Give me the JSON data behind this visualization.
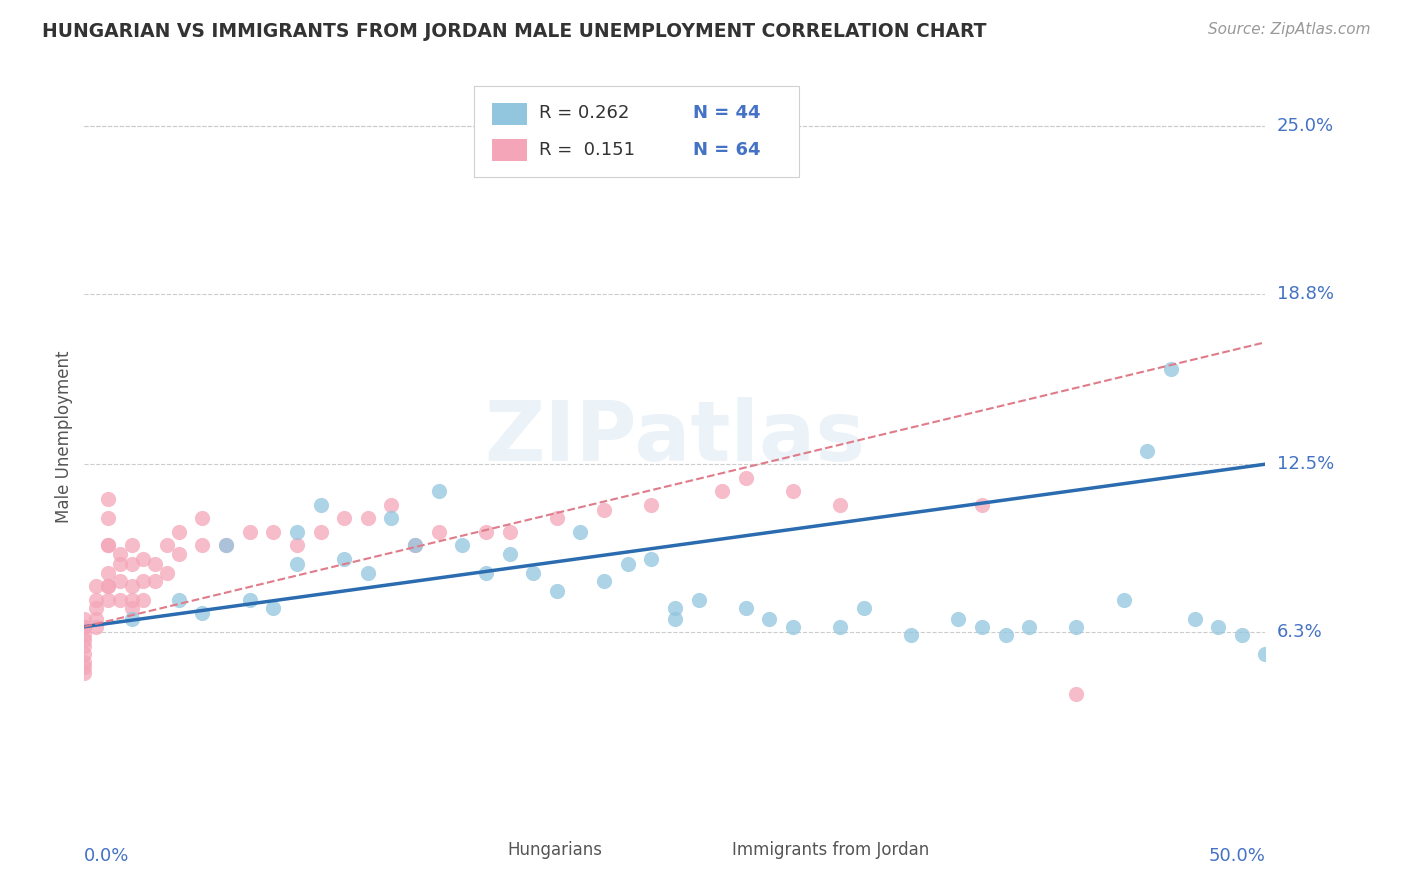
{
  "title": "HUNGARIAN VS IMMIGRANTS FROM JORDAN MALE UNEMPLOYMENT CORRELATION CHART",
  "source": "Source: ZipAtlas.com",
  "ylabel": "Male Unemployment",
  "ytick_labels": [
    "25.0%",
    "18.8%",
    "12.5%",
    "6.3%"
  ],
  "ytick_values": [
    0.25,
    0.188,
    0.125,
    0.063
  ],
  "xlim": [
    0.0,
    0.5
  ],
  "ylim": [
    0.0,
    0.27
  ],
  "grid_color": "#cccccc",
  "watermark_text": "ZIPatlas",
  "legend_r1": "R = 0.262",
  "legend_n1": "N = 44",
  "legend_r2": "R =  0.151",
  "legend_n2": "N = 64",
  "series1_label": "Hungarians",
  "series2_label": "Immigrants from Jordan",
  "series1_color": "#92c5de",
  "series2_color": "#f4a6b8",
  "line1_color": "#2b6cb0",
  "line2_color": "#e07b8a",
  "line1_x0": 0.0,
  "line1_x1": 0.5,
  "line1_y0": 0.065,
  "line1_y1": 0.125,
  "line2_x0": 0.0,
  "line2_x1": 0.5,
  "line2_y0": 0.065,
  "line2_y1": 0.17,
  "hungarian_x": [
    0.02,
    0.04,
    0.05,
    0.06,
    0.07,
    0.08,
    0.09,
    0.09,
    0.1,
    0.11,
    0.12,
    0.13,
    0.14,
    0.15,
    0.16,
    0.17,
    0.18,
    0.19,
    0.2,
    0.21,
    0.22,
    0.23,
    0.24,
    0.25,
    0.25,
    0.26,
    0.28,
    0.29,
    0.3,
    0.32,
    0.33,
    0.35,
    0.37,
    0.38,
    0.39,
    0.4,
    0.42,
    0.44,
    0.45,
    0.46,
    0.47,
    0.48,
    0.49,
    0.5
  ],
  "hungarian_y": [
    0.068,
    0.075,
    0.07,
    0.095,
    0.075,
    0.072,
    0.088,
    0.1,
    0.11,
    0.09,
    0.085,
    0.105,
    0.095,
    0.115,
    0.095,
    0.085,
    0.092,
    0.085,
    0.078,
    0.1,
    0.082,
    0.088,
    0.09,
    0.068,
    0.072,
    0.075,
    0.072,
    0.068,
    0.065,
    0.065,
    0.072,
    0.062,
    0.068,
    0.065,
    0.062,
    0.065,
    0.065,
    0.075,
    0.13,
    0.16,
    0.068,
    0.065,
    0.062,
    0.055
  ],
  "jordan_x": [
    0.0,
    0.0,
    0.0,
    0.0,
    0.0,
    0.0,
    0.0,
    0.0,
    0.0,
    0.0,
    0.005,
    0.005,
    0.005,
    0.005,
    0.005,
    0.01,
    0.01,
    0.01,
    0.01,
    0.01,
    0.01,
    0.01,
    0.01,
    0.015,
    0.015,
    0.015,
    0.015,
    0.02,
    0.02,
    0.02,
    0.02,
    0.02,
    0.025,
    0.025,
    0.025,
    0.03,
    0.03,
    0.035,
    0.035,
    0.04,
    0.04,
    0.05,
    0.05,
    0.06,
    0.07,
    0.08,
    0.09,
    0.1,
    0.11,
    0.12,
    0.13,
    0.14,
    0.15,
    0.17,
    0.18,
    0.2,
    0.22,
    0.24,
    0.27,
    0.28,
    0.3,
    0.32,
    0.38,
    0.42
  ],
  "jordan_y": [
    0.065,
    0.068,
    0.065,
    0.062,
    0.06,
    0.058,
    0.055,
    0.052,
    0.05,
    0.048,
    0.072,
    0.068,
    0.065,
    0.075,
    0.08,
    0.075,
    0.08,
    0.085,
    0.095,
    0.105,
    0.112,
    0.095,
    0.08,
    0.075,
    0.082,
    0.088,
    0.092,
    0.072,
    0.075,
    0.08,
    0.088,
    0.095,
    0.075,
    0.082,
    0.09,
    0.082,
    0.088,
    0.085,
    0.095,
    0.092,
    0.1,
    0.095,
    0.105,
    0.095,
    0.1,
    0.1,
    0.095,
    0.1,
    0.105,
    0.105,
    0.11,
    0.095,
    0.1,
    0.1,
    0.1,
    0.105,
    0.108,
    0.11,
    0.115,
    0.12,
    0.115,
    0.11,
    0.11,
    0.04
  ]
}
